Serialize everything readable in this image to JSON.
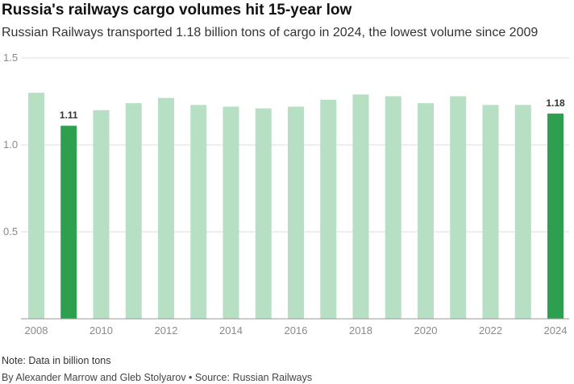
{
  "header": {
    "title": "Russia's railways cargo volumes hit 15-year low",
    "subtitle": "Russian Railways transported 1.18 billion tons of cargo in 2024, the lowest volume since 2009"
  },
  "footer": {
    "note": "Note: Data in billion tons",
    "credit": "By Alexander Marrow and Gleb Stolyarov • Source: Russian Railways"
  },
  "colors": {
    "bar": "#b7dfc3",
    "highlight": "#2e9e4f",
    "grid": "#dddddd",
    "axis": "#999999"
  },
  "chart_data": {
    "type": "bar",
    "title": "Russia's railways cargo volumes hit 15-year low",
    "xlabel": "",
    "ylabel": "",
    "unit": "billion tons",
    "ylim": [
      0,
      1.5
    ],
    "yticks": [
      "0.5",
      "1.0",
      "1.5"
    ],
    "ytick_values": [
      0.5,
      1.0,
      1.5
    ],
    "categories": [
      2008,
      2009,
      2010,
      2011,
      2012,
      2013,
      2014,
      2015,
      2016,
      2017,
      2018,
      2019,
      2020,
      2021,
      2022,
      2023,
      2024
    ],
    "xtick_labels": [
      "2008",
      "",
      "2010",
      "",
      "2012",
      "",
      "2014",
      "",
      "2016",
      "",
      "2018",
      "",
      "2020",
      "",
      "2022",
      "",
      "2024"
    ],
    "values": [
      1.3,
      1.11,
      1.2,
      1.24,
      1.27,
      1.23,
      1.22,
      1.21,
      1.22,
      1.26,
      1.29,
      1.28,
      1.24,
      1.28,
      1.23,
      1.23,
      1.18
    ],
    "highlighted": [
      2009,
      2024
    ],
    "data_labels": [
      {
        "year": 2009,
        "text": "1.11"
      },
      {
        "year": 2024,
        "text": "1.18"
      }
    ]
  }
}
